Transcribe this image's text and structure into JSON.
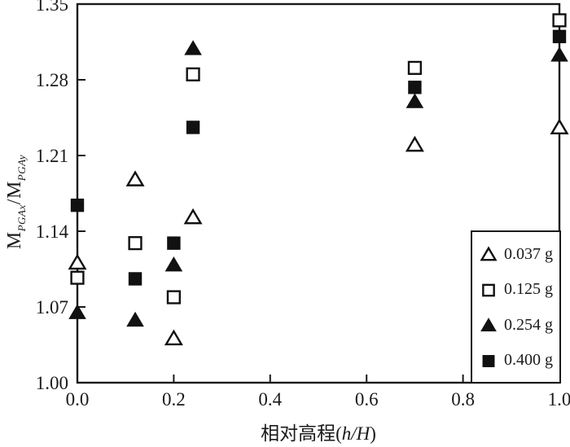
{
  "chart_data": {
    "type": "scatter",
    "title": "",
    "xlabel": {
      "text": "相对高程",
      "open": "(",
      "variable": "h/H",
      "close": ")"
    },
    "ylabel": {
      "base1": "M",
      "sub1": "PGAx",
      "slash": "/",
      "base2": "M",
      "sub2": "PGAy"
    },
    "xlim": [
      0.0,
      1.0
    ],
    "ylim": [
      1.0,
      1.35
    ],
    "grid": false,
    "legend_position": "inside-bottom-right",
    "axis_color": "#1a1a1a",
    "marker_colors": {
      "stroke": "#111111",
      "open_fill": "#ffffff",
      "filled_fill": "#111111"
    },
    "x_ticks": [
      {
        "v": 0.0,
        "label": "0.0"
      },
      {
        "v": 0.2,
        "label": "0.2"
      },
      {
        "v": 0.4,
        "label": "0.4"
      },
      {
        "v": 0.6,
        "label": "0.6"
      },
      {
        "v": 0.8,
        "label": "0.8"
      },
      {
        "v": 1.0,
        "label": "1.0"
      }
    ],
    "y_ticks": [
      {
        "v": 1.0,
        "label": "1.00"
      },
      {
        "v": 1.07,
        "label": "1.07"
      },
      {
        "v": 1.14,
        "label": "1.14"
      },
      {
        "v": 1.21,
        "label": "1.21"
      },
      {
        "v": 1.28,
        "label": "1.28"
      },
      {
        "v": 1.35,
        "label": "1.35"
      }
    ],
    "series": [
      {
        "label": "0.037 g",
        "marker": "triangle-open",
        "points": [
          [
            0.0,
            1.111
          ],
          [
            0.12,
            1.188
          ],
          [
            0.2,
            1.041
          ],
          [
            0.24,
            1.153
          ],
          [
            0.7,
            1.22
          ],
          [
            1.0,
            1.236
          ]
        ]
      },
      {
        "label": "0.125 g",
        "marker": "square-open",
        "points": [
          [
            0.0,
            1.097
          ],
          [
            0.12,
            1.129
          ],
          [
            0.2,
            1.079
          ],
          [
            0.24,
            1.285
          ],
          [
            0.7,
            1.291
          ],
          [
            1.0,
            1.335
          ]
        ]
      },
      {
        "label": "0.254 g",
        "marker": "triangle-filled",
        "points": [
          [
            0.0,
            1.065
          ],
          [
            0.12,
            1.058
          ],
          [
            0.2,
            1.109
          ],
          [
            0.24,
            1.309
          ],
          [
            0.7,
            1.26
          ],
          [
            1.0,
            1.303
          ]
        ]
      },
      {
        "label": "0.400 g",
        "marker": "square-filled",
        "points": [
          [
            0.0,
            1.164
          ],
          [
            0.12,
            1.096
          ],
          [
            0.2,
            1.129
          ],
          [
            0.24,
            1.236
          ],
          [
            0.7,
            1.273
          ],
          [
            1.0,
            1.32
          ]
        ]
      }
    ]
  }
}
